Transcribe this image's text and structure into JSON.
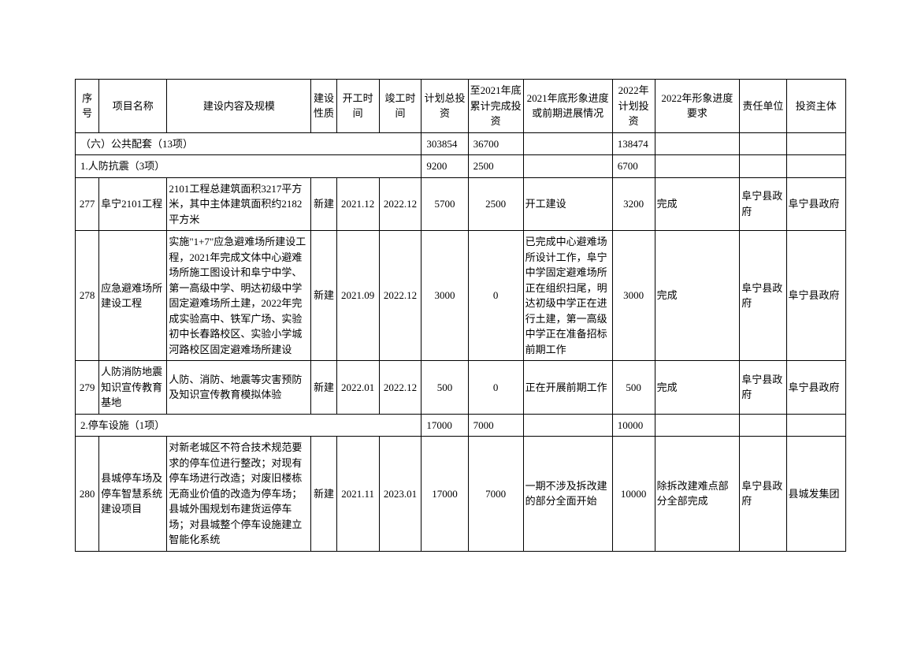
{
  "headers": {
    "seq": "序号",
    "name": "项目名称",
    "content": "建设内容及规模",
    "nature": "建设性质",
    "start": "开工时间",
    "end": "竣工时间",
    "plan_inv": "计划总投资",
    "cum_inv": "至2021年底累计完成投资",
    "progress_2021": "2021年底形象进度或前期进展情况",
    "inv_2022": "2022年计划投资",
    "req_2022": "2022年形象进度要求",
    "unit": "责任单位",
    "owner": "投资主体"
  },
  "sections": {
    "s1": {
      "title": "（六）公共配套（13项）",
      "plan_inv": "303854",
      "cum_inv": "36700",
      "inv_2022": "138474"
    },
    "s2": {
      "title": "1.人防抗震（3项）",
      "plan_inv": "9200",
      "cum_inv": "2500",
      "inv_2022": "6700"
    },
    "s3": {
      "title": "2.停车设施（1项）",
      "plan_inv": "17000",
      "cum_inv": "7000",
      "inv_2022": "10000"
    }
  },
  "rows": {
    "r277": {
      "seq": "277",
      "name": "阜宁2101工程",
      "content": "2101工程总建筑面积3217平方米，其中主体建筑面积约2182平方米",
      "nature": "新建",
      "start": "2021.12",
      "end": "2022.12",
      "plan_inv": "5700",
      "cum_inv": "2500",
      "progress": "开工建设",
      "inv_2022": "3200",
      "req": "完成",
      "unit": "阜宁县政府",
      "owner": "阜宁县政府"
    },
    "r278": {
      "seq": "278",
      "name": "应急避难场所建设工程",
      "content": "实施\"1+7\"应急避难场所建设工程，2021年完成文体中心避难场所施工图设计和阜宁中学、第一高级中学、明达初级中学固定避难场所土建，2022年完成实验高中、铁军广场、实验初中长春路校区、实验小学城河路校区固定避难场所建设",
      "nature": "新建",
      "start": "2021.09",
      "end": "2022.12",
      "plan_inv": "3000",
      "cum_inv": "0",
      "progress": "已完成中心避难场所设计工作，阜宁中学固定避难场所正在组织扫尾，明达初级中学正在进行土建，第一高级中学正在准备招标前期工作",
      "inv_2022": "3000",
      "req": "完成",
      "unit": "阜宁县政府",
      "owner": "阜宁县政府"
    },
    "r279": {
      "seq": "279",
      "name": "人防消防地震知识宣传教育基地",
      "content": "人防、消防、地震等灾害预防及知识宣传教育模拟体验",
      "nature": "新建",
      "start": "2022.01",
      "end": "2022.12",
      "plan_inv": "500",
      "cum_inv": "0",
      "progress": "正在开展前期工作",
      "inv_2022": "500",
      "req": "完成",
      "unit": "阜宁县政府",
      "owner": "阜宁县政府"
    },
    "r280": {
      "seq": "280",
      "name": "县城停车场及停车智慧系统建设项目",
      "content": "对新老城区不符合技术规范要求的停车位进行整改；对现有停车场进行改造；对废旧楼栋无商业价值的改造为停车场；县城外围规划布建货运停车场；对县城整个停车设施建立智能化系统",
      "nature": "新建",
      "start": "2021.11",
      "end": "2023.01",
      "plan_inv": "17000",
      "cum_inv": "7000",
      "progress": "一期不涉及拆改建的部分全面开始",
      "inv_2022": "10000",
      "req": "除拆改建难点部分全部完成",
      "unit": "阜宁县政府",
      "owner": "县城发集团"
    }
  }
}
